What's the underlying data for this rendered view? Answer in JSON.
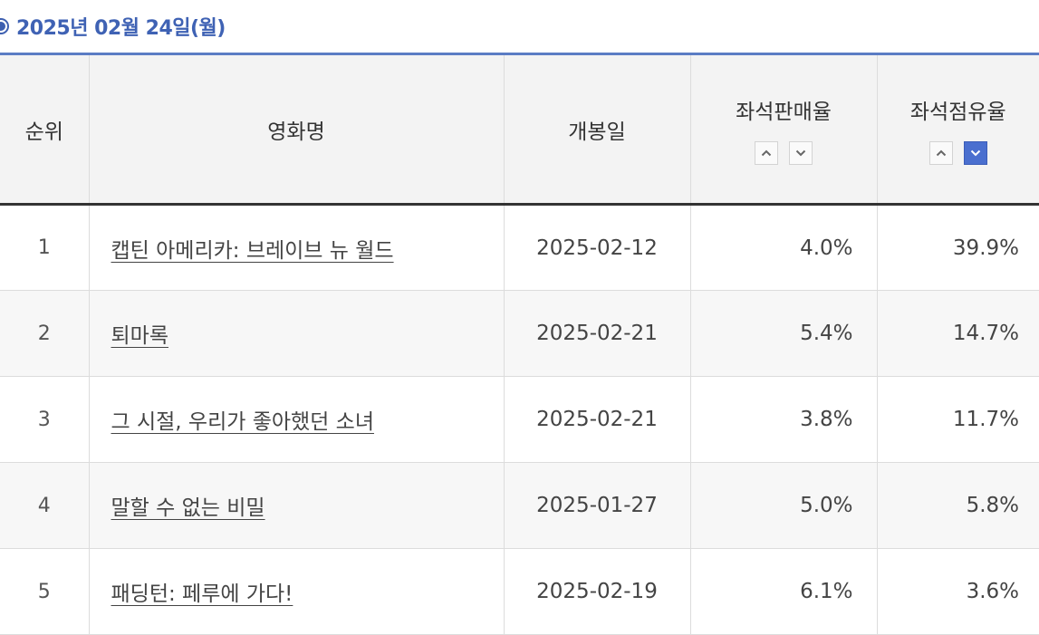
{
  "header": {
    "date": "2025년 02월 24일(월)"
  },
  "columns": {
    "rank": "순위",
    "title": "영화명",
    "release_date": "개봉일",
    "seat_sales_rate": "좌석판매율",
    "seat_share_rate": "좌석점유율"
  },
  "sort": {
    "seat_sales_rate": "none",
    "seat_share_rate": "desc"
  },
  "colors": {
    "accent": "#3f62b4",
    "active_sort": "#4a6fcf"
  },
  "rows": [
    {
      "rank": "1",
      "title": "캡틴 아메리카: 브레이브 뉴 월드",
      "release_date": "2025-02-12",
      "seat_sales_rate": "4.0%",
      "seat_share_rate": "39.9%"
    },
    {
      "rank": "2",
      "title": "퇴마록",
      "release_date": "2025-02-21",
      "seat_sales_rate": "5.4%",
      "seat_share_rate": "14.7%"
    },
    {
      "rank": "3",
      "title": "그 시절, 우리가 좋아했던 소녀",
      "release_date": "2025-02-21",
      "seat_sales_rate": "3.8%",
      "seat_share_rate": "11.7%"
    },
    {
      "rank": "4",
      "title": "말할 수 없는 비밀",
      "release_date": "2025-01-27",
      "seat_sales_rate": "5.0%",
      "seat_share_rate": "5.8%"
    },
    {
      "rank": "5",
      "title": "패딩턴: 페루에 가다!",
      "release_date": "2025-02-19",
      "seat_sales_rate": "6.1%",
      "seat_share_rate": "3.6%"
    }
  ]
}
